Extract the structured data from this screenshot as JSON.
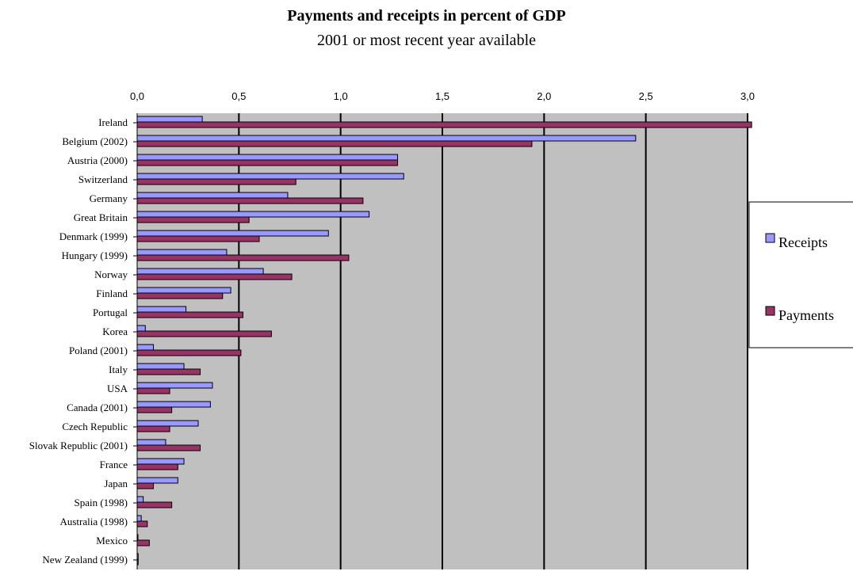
{
  "chart_data": {
    "type": "bar",
    "orientation": "horizontal",
    "title": "Payments and receipts in percent of GDP",
    "subtitle": "2001 or most recent year available",
    "xlim": [
      0,
      3
    ],
    "x_ticks": [
      "0,0",
      "0,5",
      "1,0",
      "1,5",
      "2,0",
      "2,5",
      "3,0"
    ],
    "grid": true,
    "legend_position": "right",
    "categories": [
      "Ireland",
      "Belgium (2002)",
      "Austria (2000)",
      "Switzerland",
      "Germany",
      "Great Britain",
      "Denmark (1999)",
      "Hungary (1999)",
      "Norway",
      "Finland",
      "Portugal",
      "Korea",
      "Poland (2001)",
      "Italy",
      "USA",
      "Canada (2001)",
      "Czech Republic",
      "Slovak Republic (2001)",
      "France",
      "Japan",
      "Spain (1998)",
      "Australia (1998)",
      "Mexico",
      "New Zealand (1999)"
    ],
    "series": [
      {
        "name": "Receipts",
        "color": "#9999ff",
        "values": [
          0.32,
          2.45,
          1.28,
          1.31,
          0.74,
          1.14,
          0.94,
          0.44,
          0.62,
          0.46,
          0.24,
          0.04,
          0.08,
          0.23,
          0.37,
          0.36,
          0.3,
          0.14,
          0.23,
          0.2,
          0.03,
          0.02,
          0.0,
          0.005
        ]
      },
      {
        "name": "Payments",
        "color": "#993366",
        "values": [
          3.02,
          1.94,
          1.28,
          0.78,
          1.11,
          0.55,
          0.6,
          1.04,
          0.76,
          0.42,
          0.52,
          0.66,
          0.51,
          0.31,
          0.16,
          0.17,
          0.16,
          0.31,
          0.2,
          0.08,
          0.17,
          0.05,
          0.06,
          0.005
        ]
      }
    ]
  }
}
